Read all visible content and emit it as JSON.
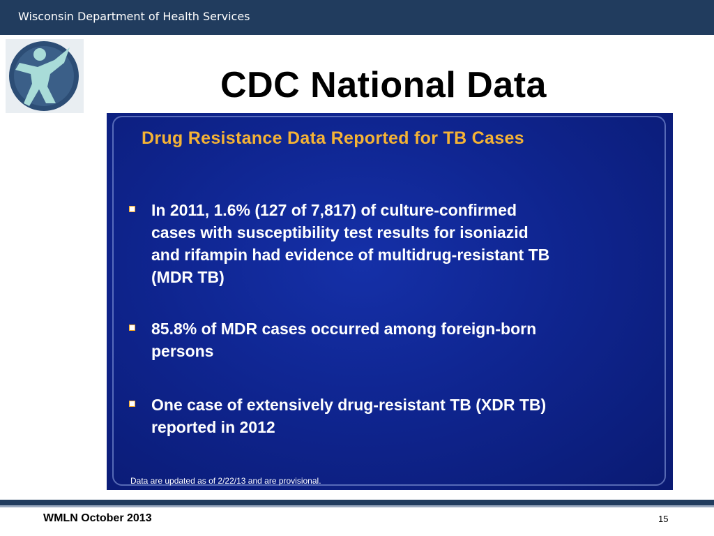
{
  "header": {
    "organization": "Wisconsin Department of Health Services"
  },
  "slide": {
    "title": "CDC National Data"
  },
  "panel": {
    "title": "Drug Resistance Data Reported for TB Cases",
    "bullets": [
      {
        "lines": [
          "In 2011, 1.6% (127 of 7,817) of culture-confirmed",
          "cases with susceptibility test results for isoniazid",
          "and rifampin had evidence of multidrug-resistant TB",
          "(MDR TB)"
        ]
      },
      {
        "lines": [
          "85.8% of MDR cases occurred among foreign-born",
          "persons"
        ]
      },
      {
        "lines": [
          "One case of extensively drug-resistant TB (XDR TB)",
          "reported in 2012"
        ]
      }
    ],
    "note": "Data are updated as of 2/22/13 and are provisional."
  },
  "footer": {
    "left": "WMLN October 2013",
    "page_number": "15"
  },
  "colors": {
    "header": "#213c5e",
    "panel": "#0f2590",
    "panel_title": "#f5b335",
    "bullet_marker": "#f2a521"
  },
  "icons": {
    "logo": "dhs-person-logo-icon",
    "bullet": "square-bullet-icon"
  }
}
